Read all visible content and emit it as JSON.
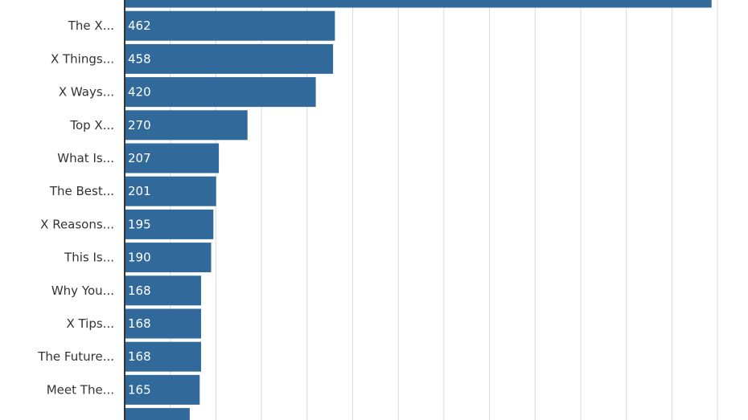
{
  "chart_data": {
    "type": "bar",
    "orientation": "horizontal",
    "categories": [
      "",
      "The X...",
      "X Things...",
      "X Ways...",
      "Top X...",
      "What Is...",
      "The Best...",
      "X Reasons...",
      "This Is...",
      "Why You...",
      "X Tips...",
      "The Future...",
      "Meet The...",
      ""
    ],
    "values": [
      1290,
      462,
      458,
      420,
      270,
      207,
      201,
      195,
      190,
      168,
      168,
      168,
      165,
      143
    ],
    "value_labels": [
      "",
      "462",
      "458",
      "420",
      "270",
      "207",
      "201",
      "195",
      "190",
      "168",
      "168",
      "168",
      "165",
      ""
    ],
    "title": "",
    "xlabel": "",
    "ylabel": "",
    "xlim": [
      0,
      1370
    ],
    "grid": true,
    "legend": "none",
    "colors": {
      "bar": "#31699a",
      "label_text": "#333333",
      "value_text": "#ffffff",
      "grid": "#d9d9d9",
      "axis": "#333333"
    }
  }
}
